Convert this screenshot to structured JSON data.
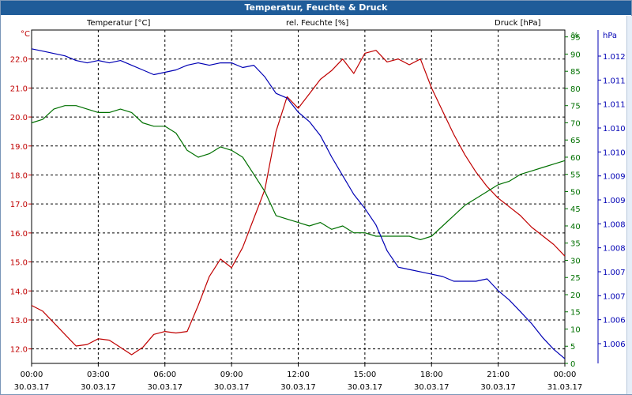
{
  "window": {
    "title": "Temperatur, Feuchte & Druck"
  },
  "colors": {
    "temperature": "#c00000",
    "humidity": "#007000",
    "pressure": "#0000b4",
    "titlebar": "#1f5c99"
  },
  "chart_data": {
    "type": "line",
    "title": "Temperatur, Feuchte & Druck",
    "grid": true,
    "x_ticks": [
      {
        "time": "00:00",
        "date": "30.03.17"
      },
      {
        "time": "03:00",
        "date": "30.03.17"
      },
      {
        "time": "06:00",
        "date": "30.03.17"
      },
      {
        "time": "09:00",
        "date": "30.03.17"
      },
      {
        "time": "12:00",
        "date": "30.03.17"
      },
      {
        "time": "15:00",
        "date": "30.03.17"
      },
      {
        "time": "18:00",
        "date": "30.03.17"
      },
      {
        "time": "21:00",
        "date": "30.03.17"
      },
      {
        "time": "00:00",
        "date": "31.03.17"
      }
    ],
    "axes": {
      "temperature": {
        "header": "Temperatur [°C]",
        "unit": "°C",
        "side": "left",
        "range": [
          11.5,
          23.0
        ],
        "ticks": [
          "12.0",
          "13.0",
          "14.0",
          "15.0",
          "16.0",
          "17.0",
          "18.0",
          "19.0",
          "20.0",
          "21.0",
          "22.0"
        ]
      },
      "humidity": {
        "header": "rel. Feuchte [%]",
        "unit": "%",
        "side": "right",
        "range": [
          0,
          97
        ],
        "ticks": [
          "0",
          "5",
          "10",
          "15",
          "20",
          "25",
          "30",
          "35",
          "40",
          "45",
          "50",
          "55",
          "60",
          "65",
          "70",
          "75",
          "80",
          "85",
          "90",
          "95"
        ]
      },
      "pressure": {
        "header": "Druck [hPa]",
        "unit": "hPa",
        "side": "right",
        "range": [
          1005.5,
          1012.6
        ],
        "ticks": [
          "1.006",
          "1.006",
          "1.007",
          "1.007",
          "1.008",
          "1.008",
          "1.009",
          "1.009",
          "1.010",
          "1.010",
          "1.011",
          "1.011",
          "1.012"
        ]
      }
    },
    "series": [
      {
        "name": "Temperatur [°C]",
        "axis": "temperature",
        "color": "#c00000",
        "x_hours": [
          0,
          0.5,
          1,
          1.5,
          2,
          2.5,
          3,
          3.5,
          4,
          4.5,
          5,
          5.5,
          6,
          6.5,
          7,
          7.5,
          8,
          8.5,
          9,
          9.5,
          10,
          10.5,
          11,
          11.5,
          12,
          12.5,
          13,
          13.5,
          14,
          14.5,
          15,
          15.5,
          16,
          16.5,
          17,
          17.5,
          18,
          18.5,
          19,
          19.5,
          20,
          20.5,
          21,
          21.5,
          22,
          22.5,
          23,
          23.5,
          24
        ],
        "values": [
          13.5,
          13.3,
          12.9,
          12.5,
          12.1,
          12.15,
          12.35,
          12.3,
          12.05,
          11.8,
          12.05,
          12.5,
          12.6,
          12.55,
          12.6,
          13.5,
          14.5,
          15.1,
          14.8,
          15.5,
          16.5,
          17.5,
          19.5,
          20.7,
          20.3,
          20.8,
          21.3,
          21.6,
          22.0,
          21.5,
          22.2,
          22.3,
          21.9,
          22.0,
          21.8,
          22.0,
          21.0,
          20.2,
          19.4,
          18.7,
          18.1,
          17.6,
          17.2,
          16.9,
          16.6,
          16.2,
          15.9,
          15.6,
          15.2
        ]
      },
      {
        "name": "rel. Feuchte [%]",
        "axis": "humidity",
        "color": "#007000",
        "x_hours": [
          0,
          0.5,
          1,
          1.5,
          2,
          2.5,
          3,
          3.5,
          4,
          4.5,
          5,
          5.5,
          6,
          6.5,
          7,
          7.5,
          8,
          8.5,
          9,
          9.5,
          10,
          10.5,
          11,
          11.5,
          12,
          12.5,
          13,
          13.5,
          14,
          14.5,
          15,
          15.5,
          16,
          16.5,
          17,
          17.5,
          18,
          18.5,
          19,
          19.5,
          20,
          20.5,
          21,
          21.5,
          22,
          22.5,
          23,
          23.5,
          24
        ],
        "values": [
          70,
          71,
          74,
          75,
          75,
          74,
          73,
          73,
          74,
          73,
          70,
          69,
          69,
          67,
          62,
          60,
          61,
          63,
          62,
          60,
          55,
          50,
          43,
          42,
          41,
          40,
          41,
          39,
          40,
          38,
          38,
          37,
          37,
          37,
          37,
          36,
          37,
          40,
          43,
          46,
          48,
          50,
          52,
          53,
          55,
          56,
          57,
          58,
          59
        ]
      },
      {
        "name": "Druck [hPa]",
        "axis": "pressure",
        "color": "#0000b4",
        "x_hours": [
          0,
          0.5,
          1,
          1.5,
          2,
          2.5,
          3,
          3.5,
          4,
          4.5,
          5,
          5.5,
          6,
          6.5,
          7,
          7.5,
          8,
          8.5,
          9,
          9.5,
          10,
          10.5,
          11,
          11.5,
          12,
          12.5,
          13,
          13.5,
          14,
          14.5,
          15,
          15.5,
          16,
          16.5,
          17,
          17.5,
          18,
          18.5,
          19,
          19.5,
          20,
          20.5,
          21,
          21.5,
          22,
          22.5,
          23,
          23.5,
          24
        ],
        "values": [
          1012.2,
          1012.15,
          1012.1,
          1012.05,
          1011.95,
          1011.9,
          1011.95,
          1011.9,
          1011.95,
          1011.85,
          1011.75,
          1011.65,
          1011.7,
          1011.75,
          1011.85,
          1011.9,
          1011.85,
          1011.9,
          1011.9,
          1011.8,
          1011.85,
          1011.6,
          1011.25,
          1011.15,
          1010.85,
          1010.65,
          1010.35,
          1009.9,
          1009.5,
          1009.1,
          1008.8,
          1008.45,
          1007.9,
          1007.55,
          1007.5,
          1007.45,
          1007.4,
          1007.35,
          1007.25,
          1007.25,
          1007.25,
          1007.3,
          1007.05,
          1006.85,
          1006.6,
          1006.35,
          1006.05,
          1005.8,
          1005.6
        ]
      }
    ]
  }
}
